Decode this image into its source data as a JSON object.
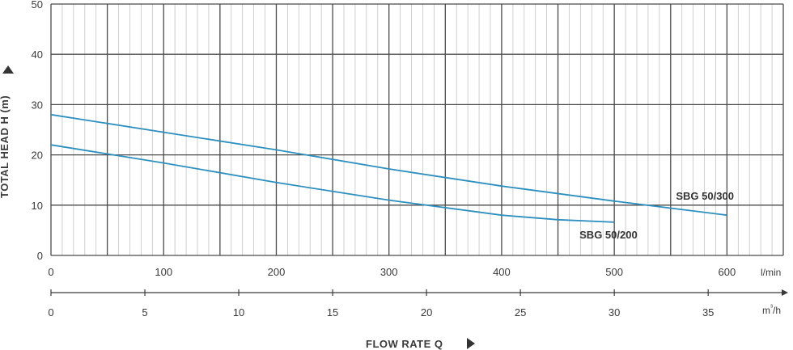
{
  "chart_data": {
    "type": "line",
    "ylabel": "TOTAL HEAD H (m)",
    "xlabel": "FLOW RATE Q",
    "ylim": [
      0,
      50
    ],
    "yticks": [
      0,
      10,
      20,
      30,
      40,
      50
    ],
    "xlim": [
      0,
      650
    ],
    "x_unit": "l/min",
    "xticks": [
      0,
      100,
      200,
      300,
      400,
      500,
      600
    ],
    "x2_unit": "m³/h",
    "x2ticks": [
      0,
      5,
      10,
      15,
      20,
      25,
      30,
      35
    ],
    "grid": true,
    "series": [
      {
        "name": "SBG 50/300",
        "color": "#2c8fbf",
        "x": [
          0,
          100,
          200,
          300,
          400,
          500,
          600
        ],
        "y": [
          28,
          24.5,
          21,
          17.2,
          13.8,
          10.8,
          8
        ]
      },
      {
        "name": "SBG 50/200",
        "color": "#2c8fbf",
        "x": [
          0,
          100,
          200,
          300,
          400,
          450,
          500
        ],
        "y": [
          22,
          18.4,
          14.5,
          11,
          8,
          7.1,
          6.6
        ]
      }
    ]
  }
}
